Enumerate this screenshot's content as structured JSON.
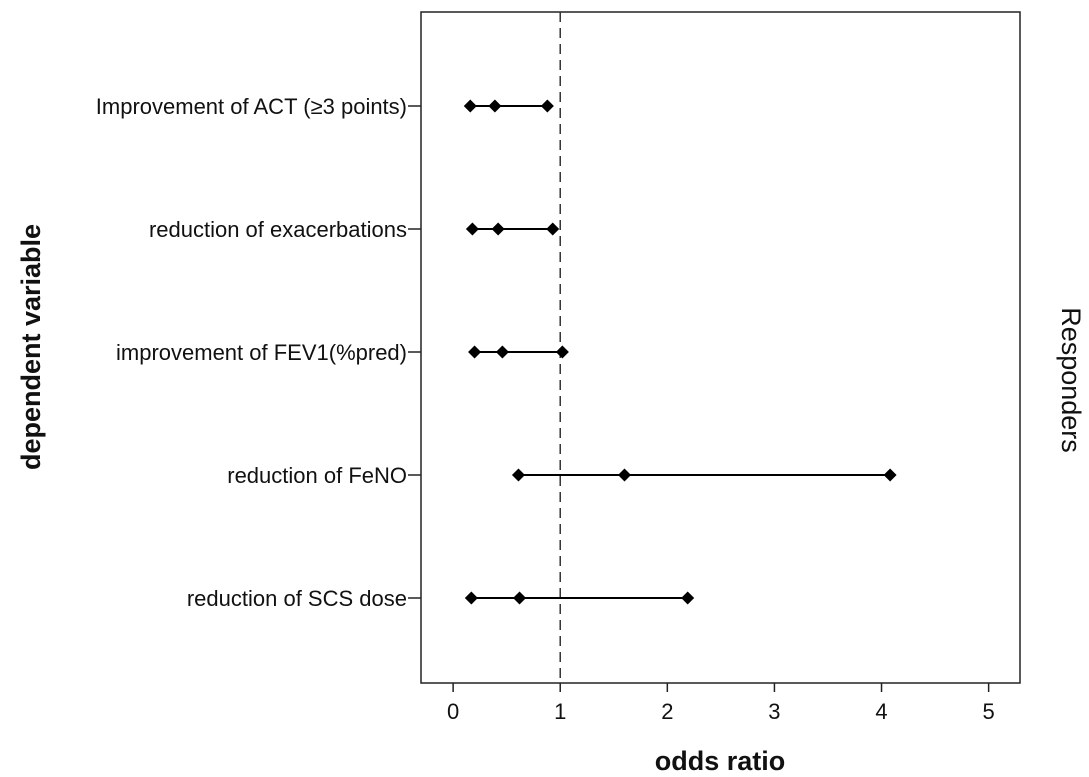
{
  "chart_data": {
    "type": "scatter",
    "subtype": "forest-plot",
    "xlabel": "odds ratio",
    "ylabel": "dependent variable",
    "panel_label": "Responders",
    "xlim": [
      -0.3,
      5.3
    ],
    "xticks": [
      0,
      1,
      2,
      3,
      4,
      5
    ],
    "xtick_labels": [
      "0",
      "1",
      "2",
      "3",
      "4",
      "5"
    ],
    "reference_line": 1,
    "grid": false,
    "categories": [
      "Improvement of ACT (≥3 points)",
      "reduction of exacerbations",
      "improvement of FEV1(%pred)",
      "reduction of FeNO",
      "reduction of SCS dose"
    ],
    "series": [
      {
        "values": [
          {
            "lower": 0.16,
            "estimate": 0.39,
            "upper": 0.88
          },
          {
            "lower": 0.18,
            "estimate": 0.42,
            "upper": 0.93
          },
          {
            "lower": 0.2,
            "estimate": 0.46,
            "upper": 1.02
          },
          {
            "lower": 0.61,
            "estimate": 1.6,
            "upper": 4.08
          },
          {
            "lower": 0.17,
            "estimate": 0.62,
            "upper": 2.19
          }
        ]
      }
    ],
    "colors": {
      "marker": "#000000",
      "line": "#000000",
      "frame": "#222222"
    }
  }
}
